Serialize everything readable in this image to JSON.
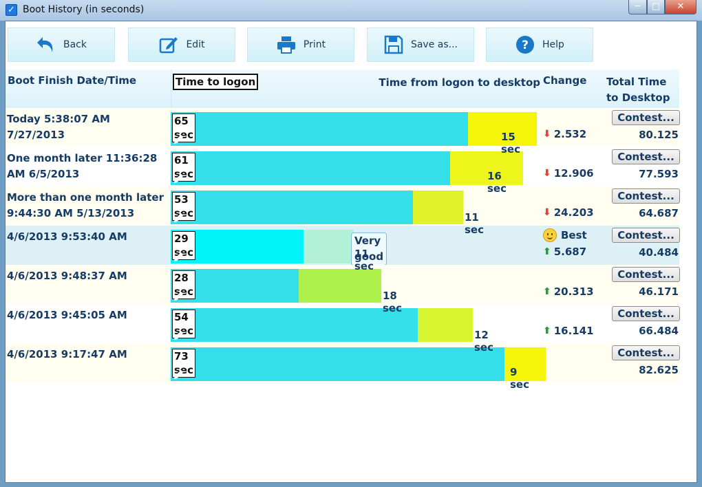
{
  "window": {
    "title": "Boot History (in seconds)",
    "minimize": "─",
    "maximize": "□",
    "close": "✕"
  },
  "toolbar": {
    "back": "Back",
    "edit": "Edit",
    "print": "Print",
    "save": "Save as...",
    "help": "Help"
  },
  "headers": {
    "date": "Boot Finish Date/Time",
    "logon": "Time to logon",
    "desktop": "Time from logon to desktop",
    "change": "Change",
    "total": "Total Time to Desktop"
  },
  "colors": {
    "logon_bar": "#34dfea",
    "best_bar": "#00f4fa"
  },
  "rows": [
    {
      "date": "Today  5:38:07 AM 7/27/2013",
      "logon": 65,
      "logon_label": "65 sec",
      "desktop": 15,
      "desktop_label": "15 sec",
      "desktop_color": "#f5f50a",
      "change_dir": "down",
      "change": "2.532",
      "contest": "Contest...",
      "total": "80.125",
      "style": "cream"
    },
    {
      "date": "One month later  11:36:28 AM 6/5/2013",
      "logon": 61,
      "logon_label": "61 sec",
      "desktop": 16,
      "desktop_label": "16 sec",
      "desktop_color": "#eef51a",
      "change_dir": "down",
      "change": "12.906",
      "contest": "Contest...",
      "total": "77.593",
      "style": "white"
    },
    {
      "date": "More than one month later 9:44:30 AM 5/13/2013",
      "logon": 53,
      "logon_label": "53 sec",
      "desktop": 11,
      "desktop_label": "11 sec",
      "desktop_color": "#dff22a",
      "change_dir": "down",
      "change": "24.203",
      "contest": "Contest...",
      "total": "64.687",
      "style": "cream"
    },
    {
      "date": "4/6/2013 9:53:40 AM",
      "logon": 29,
      "logon_label": "29 sec",
      "desktop": 11,
      "desktop_label": "11 sec",
      "desktop_color": "#b2f0d8",
      "best_label": "Best",
      "very_good": "Very good",
      "change_dir": "up",
      "change": "5.687",
      "contest": "Contest...",
      "total": "40.484",
      "style": "best"
    },
    {
      "date": "4/6/2013 9:48:37 AM",
      "logon": 28,
      "logon_label": "28 sec",
      "desktop": 18,
      "desktop_label": "18 sec",
      "desktop_color": "#aef04a",
      "change_dir": "up",
      "change": "20.313",
      "contest": "Contest...",
      "total": "46.171",
      "style": "cream"
    },
    {
      "date": "4/6/2013 9:45:05 AM",
      "logon": 54,
      "logon_label": "54 sec",
      "desktop": 12,
      "desktop_label": "12 sec",
      "desktop_color": "#d7f430",
      "change_dir": "up",
      "change": "16.141",
      "contest": "Contest...",
      "total": "66.484",
      "style": "white"
    },
    {
      "date": "4/6/2013 9:17:47 AM",
      "logon": 73,
      "logon_label": "73 sec",
      "desktop": 9,
      "desktop_label": "9 sec",
      "desktop_color": "#f5f50a",
      "contest": "Contest...",
      "total": "82.625",
      "style": "cream"
    }
  ]
}
